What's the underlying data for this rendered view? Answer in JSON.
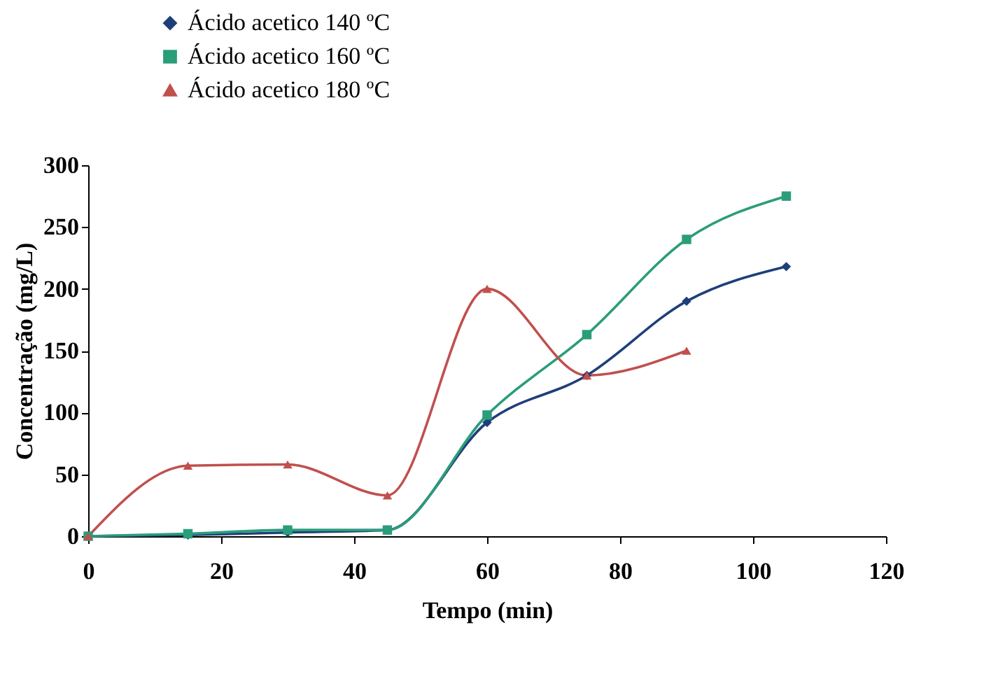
{
  "chart_data": {
    "type": "line",
    "xlabel": "Tempo (min)",
    "ylabel": "Concentração (mg/L)",
    "xlim": [
      0,
      120
    ],
    "xticks": [
      0,
      20,
      40,
      60,
      80,
      100,
      120
    ],
    "ylim": [
      0,
      300
    ],
    "yticks": [
      0,
      50,
      100,
      150,
      200,
      250,
      300
    ],
    "grid": false,
    "legend": "top left",
    "series": [
      {
        "name": "Ácido acetico 140 ºC",
        "color": "#1f3f7a",
        "marker": "diamond",
        "x": [
          0,
          15,
          30,
          45,
          60,
          75,
          90,
          105
        ],
        "values": [
          0,
          1,
          3,
          5,
          92,
          130,
          190,
          218
        ]
      },
      {
        "name": "Ácido acetico 160 ºC",
        "color": "#2a9d7a",
        "marker": "square",
        "x": [
          0,
          15,
          30,
          45,
          60,
          75,
          90,
          105
        ],
        "values": [
          0,
          2,
          5,
          5,
          98,
          163,
          240,
          275
        ]
      },
      {
        "name": "Ácido acetico 180 ºC",
        "color": "#c0504d",
        "marker": "triangle",
        "x": [
          0,
          15,
          30,
          45,
          60,
          75,
          90
        ],
        "values": [
          0,
          57,
          58,
          33,
          200,
          130,
          150
        ]
      }
    ]
  }
}
